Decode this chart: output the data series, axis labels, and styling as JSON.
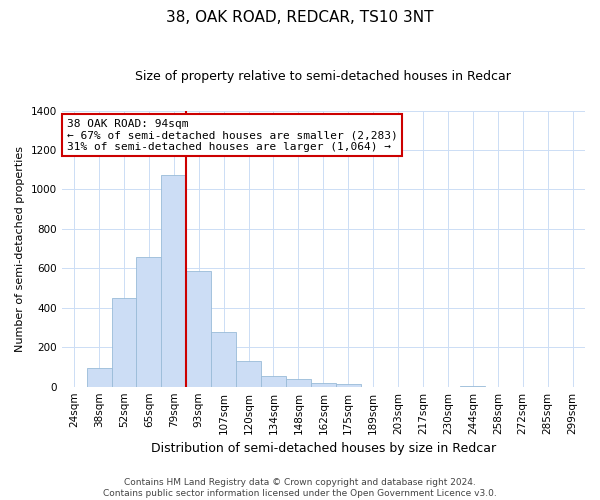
{
  "title": "38, OAK ROAD, REDCAR, TS10 3NT",
  "subtitle": "Size of property relative to semi-detached houses in Redcar",
  "xlabel": "Distribution of semi-detached houses by size in Redcar",
  "ylabel": "Number of semi-detached properties",
  "bin_labels": [
    "24sqm",
    "38sqm",
    "52sqm",
    "65sqm",
    "79sqm",
    "93sqm",
    "107sqm",
    "120sqm",
    "134sqm",
    "148sqm",
    "162sqm",
    "175sqm",
    "189sqm",
    "203sqm",
    "217sqm",
    "230sqm",
    "244sqm",
    "258sqm",
    "272sqm",
    "285sqm",
    "299sqm"
  ],
  "bar_values": [
    0,
    95,
    450,
    660,
    1075,
    585,
    275,
    130,
    55,
    40,
    20,
    15,
    0,
    0,
    0,
    0,
    5,
    0,
    0,
    0,
    0
  ],
  "bar_color": "#ccddf5",
  "bar_edge_color": "#99bbd8",
  "vline_bin_index": 5,
  "vline_color": "#cc0000",
  "annotation_line1": "38 OAK ROAD: 94sqm",
  "annotation_line2": "← 67% of semi-detached houses are smaller (2,283)",
  "annotation_line3": "31% of semi-detached houses are larger (1,064) →",
  "annotation_box_color": "#ffffff",
  "annotation_box_edge": "#cc0000",
  "ylim": [
    0,
    1400
  ],
  "yticks": [
    0,
    200,
    400,
    600,
    800,
    1000,
    1200,
    1400
  ],
  "footer_text": "Contains HM Land Registry data © Crown copyright and database right 2024.\nContains public sector information licensed under the Open Government Licence v3.0.",
  "background_color": "#ffffff",
  "grid_color": "#ccddf5",
  "title_fontsize": 11,
  "subtitle_fontsize": 9,
  "xlabel_fontsize": 9,
  "ylabel_fontsize": 8,
  "tick_fontsize": 7.5,
  "footer_fontsize": 6.5,
  "annot_fontsize": 8
}
